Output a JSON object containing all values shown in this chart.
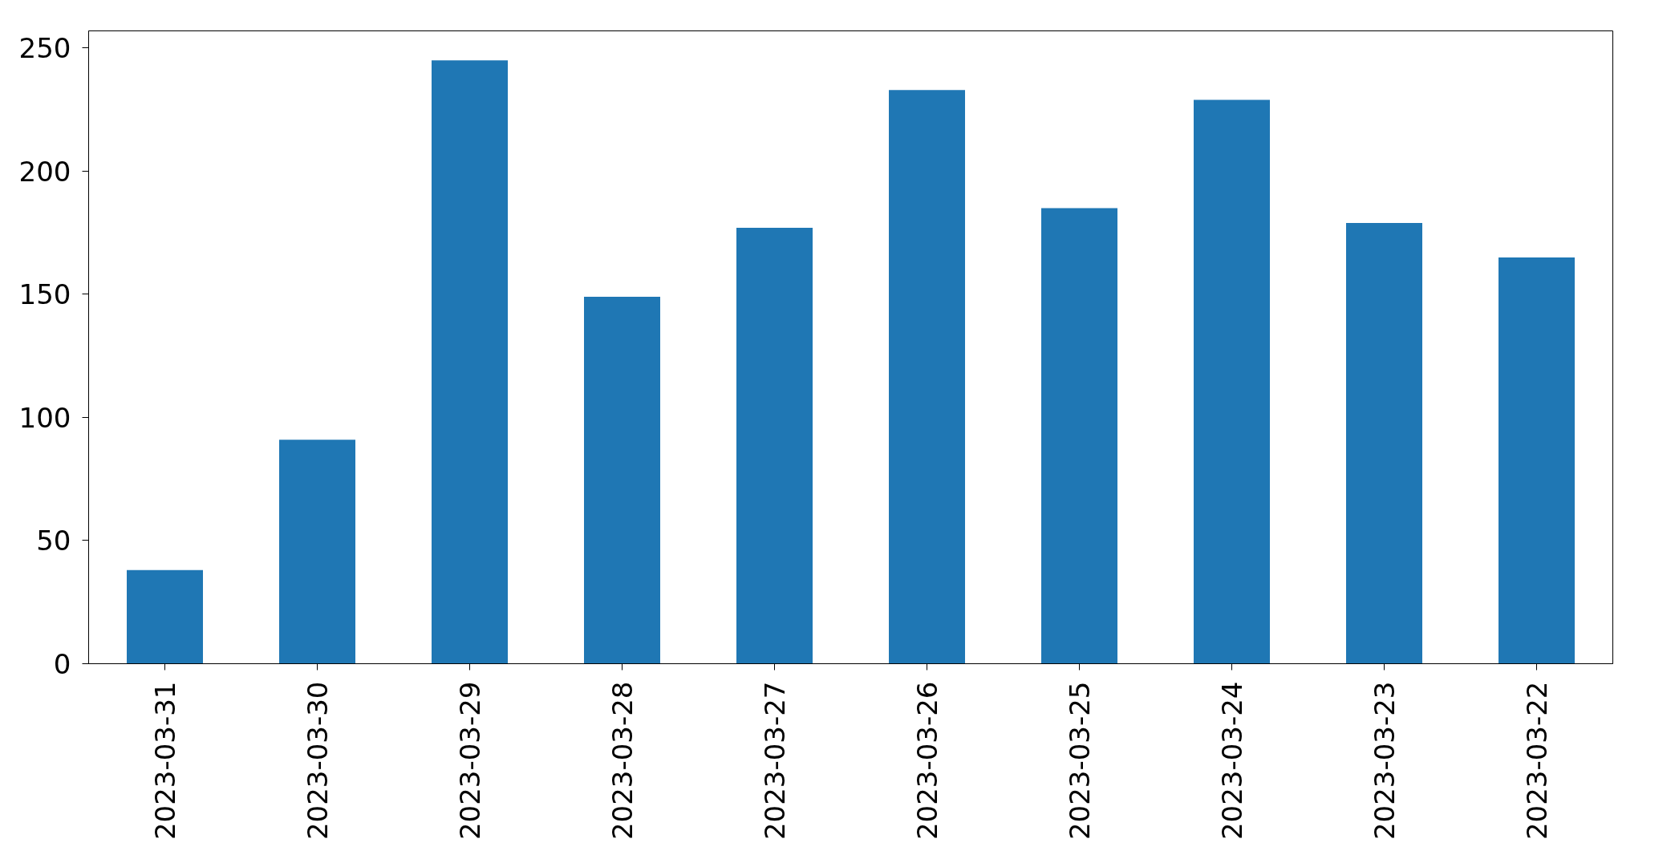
{
  "chart_data": {
    "type": "bar",
    "categories": [
      "2023-03-31",
      "2023-03-30",
      "2023-03-29",
      "2023-03-28",
      "2023-03-27",
      "2023-03-26",
      "2023-03-25",
      "2023-03-24",
      "2023-03-23",
      "2023-03-22"
    ],
    "values": [
      38,
      91,
      245,
      149,
      177,
      233,
      185,
      229,
      179,
      165
    ],
    "color": "#1f77b4",
    "ylim": [
      0,
      257
    ],
    "yticks": [
      0,
      50,
      100,
      150,
      200,
      250
    ],
    "grid": false
  }
}
